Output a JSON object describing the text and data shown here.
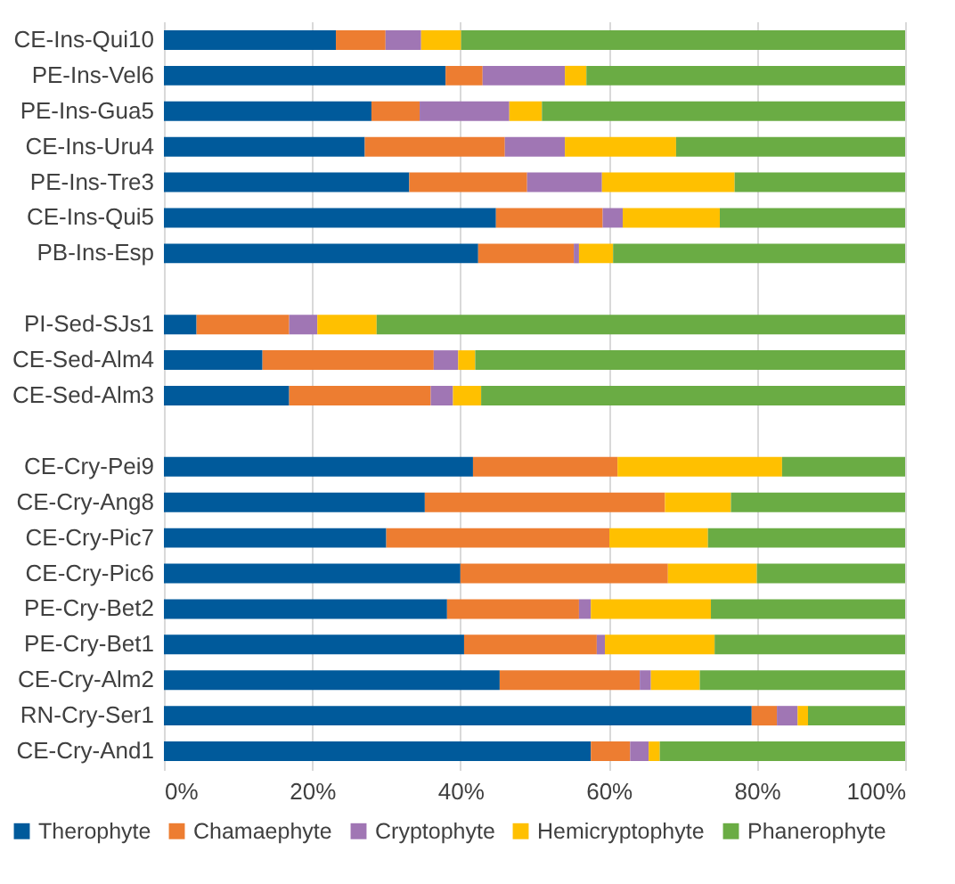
{
  "chart_data": {
    "type": "bar",
    "orientation": "horizontal",
    "stacked": true,
    "categories": [
      "CE-Ins-Qui10",
      "PE-Ins-Vel6",
      "PE-Ins-Gua5",
      "CE-Ins-Uru4",
      "PE-Ins-Tre3",
      "CE-Ins-Qui5",
      "PB-Ins-Esp",
      null,
      "PI-Sed-SJs1",
      "CE-Sed-Alm4",
      "CE-Sed-Alm3",
      null,
      "CE-Cry-Pei9",
      "CE-Cry-Ang8",
      "CE-Cry-Pic7",
      "CE-Cry-Pic6",
      "PE-Cry-Bet2",
      "PE-Cry-Bet1",
      "CE-Cry-Alm2",
      "RN-Cry-Ser1",
      "CE-Cry-And1"
    ],
    "series": [
      {
        "name": "Therophyte",
        "color": "#005a9b",
        "values": [
          23.2,
          38.0,
          28.0,
          27.1,
          33.1,
          44.8,
          42.4,
          null,
          4.4,
          13.3,
          16.9,
          null,
          41.7,
          35.2,
          30.0,
          40.0,
          38.2,
          40.5,
          45.3,
          79.3,
          57.6
        ]
      },
      {
        "name": "Chamaephyte",
        "color": "#ed7d31",
        "values": [
          6.7,
          5.0,
          6.5,
          18.9,
          15.9,
          14.4,
          12.9,
          null,
          12.5,
          23.1,
          19.1,
          null,
          19.5,
          32.4,
          30.1,
          28.0,
          17.8,
          17.9,
          18.9,
          3.4,
          5.3
        ]
      },
      {
        "name": "Cryptophyte",
        "color": "#a076b4",
        "values": [
          4.8,
          11.1,
          12.1,
          8.1,
          10.1,
          2.7,
          0.7,
          null,
          3.8,
          3.3,
          3.0,
          null,
          0,
          0,
          0,
          0,
          1.6,
          1.1,
          1.5,
          2.8,
          2.5
        ]
      },
      {
        "name": "Hemicryptophyte",
        "color": "#ffc000",
        "values": [
          5.4,
          2.9,
          4.4,
          15.0,
          17.9,
          13.1,
          4.6,
          null,
          8.0,
          2.3,
          3.8,
          null,
          22.2,
          8.9,
          13.3,
          12.0,
          16.2,
          14.8,
          6.6,
          1.4,
          1.5
        ]
      },
      {
        "name": "Phanerophyte",
        "color": "#6aac44",
        "values": [
          59.9,
          43.0,
          49.0,
          30.9,
          23.0,
          25.0,
          39.4,
          null,
          71.3,
          58.0,
          57.2,
          null,
          16.6,
          23.5,
          26.6,
          20.0,
          26.2,
          25.7,
          27.7,
          13.1,
          33.1
        ]
      }
    ],
    "xlim": [
      0,
      100
    ],
    "xticks": [
      {
        "value": 0,
        "label": "0%"
      },
      {
        "value": 20,
        "label": "20%"
      },
      {
        "value": 40,
        "label": "40%"
      },
      {
        "value": 60,
        "label": "60%"
      },
      {
        "value": 80,
        "label": "80%"
      },
      {
        "value": 100,
        "label": "100%"
      }
    ],
    "grid": "x",
    "legend": "bottom"
  }
}
